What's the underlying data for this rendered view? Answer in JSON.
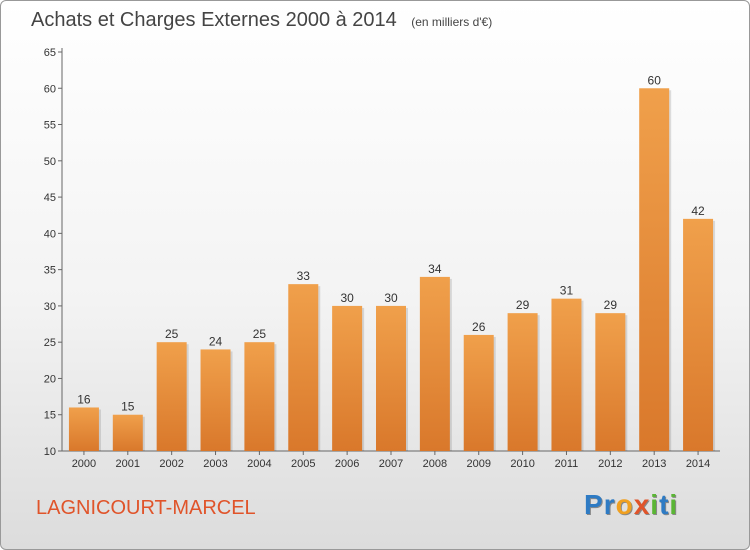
{
  "header": {
    "title": "Achats et Charges Externes 2000 à 2014",
    "unit": "(en milliers d'€)"
  },
  "footer": {
    "commune": "LAGNICOURT-MARCEL",
    "brand_letters": [
      {
        "ch": "P",
        "color": "#2e7bc4"
      },
      {
        "ch": "r",
        "color": "#2e7bc4"
      },
      {
        "ch": "o",
        "color": "#f0a020"
      },
      {
        "ch": "x",
        "color": "#e0542a"
      },
      {
        "ch": "i",
        "color": "#5ab535"
      },
      {
        "ch": "t",
        "color": "#2e7bc4"
      },
      {
        "ch": "i",
        "color": "#5ab535"
      }
    ]
  },
  "chart_data": {
    "type": "bar",
    "title": "Achats et Charges Externes 2000 à 2014",
    "subtitle": "(en milliers d'€)",
    "xlabel": "",
    "ylabel": "",
    "categories": [
      "2000",
      "2001",
      "2002",
      "2003",
      "2004",
      "2005",
      "2006",
      "2007",
      "2008",
      "2009",
      "2010",
      "2011",
      "2012",
      "2013",
      "2014"
    ],
    "values": [
      16,
      15,
      25,
      24,
      25,
      33,
      30,
      30,
      34,
      26,
      29,
      31,
      29,
      60,
      42
    ],
    "ylim": [
      10,
      65
    ],
    "yticks": [
      10,
      15,
      20,
      25,
      30,
      35,
      40,
      45,
      50,
      55,
      60,
      65
    ],
    "grid": false,
    "bar_color": "#f0a04b",
    "bar_color_dark": "#d9782b"
  }
}
